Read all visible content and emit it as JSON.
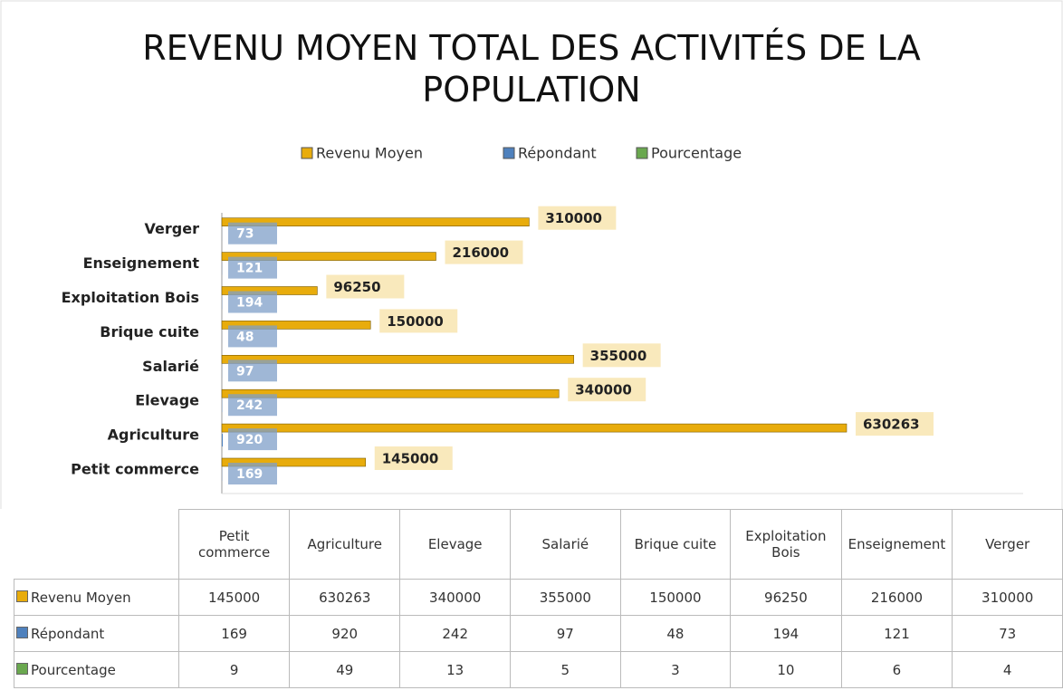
{
  "chart_data": {
    "type": "bar",
    "orientation": "horizontal",
    "title": "REVENU MOYEN TOTAL DES ACTIVITÉS DE LA POPULATION",
    "categories": [
      "Petit commerce",
      "Agriculture",
      "Elevage",
      "Salarié",
      "Brique cuite",
      "Exploitation Bois",
      "Enseignement",
      "Verger"
    ],
    "series": [
      {
        "name": "Revenu Moyen",
        "color": "#e8ac0c",
        "values": [
          145000,
          630263,
          340000,
          355000,
          150000,
          96250,
          216000,
          310000
        ]
      },
      {
        "name": "Répondant",
        "color": "#4f81bd",
        "values": [
          169,
          920,
          242,
          97,
          48,
          194,
          121,
          73
        ]
      },
      {
        "name": "Pourcentage",
        "color": "#6aa84f",
        "values": [
          9,
          49,
          13,
          5,
          3,
          10,
          6,
          4
        ]
      }
    ],
    "legend": "top",
    "data_table": true
  }
}
